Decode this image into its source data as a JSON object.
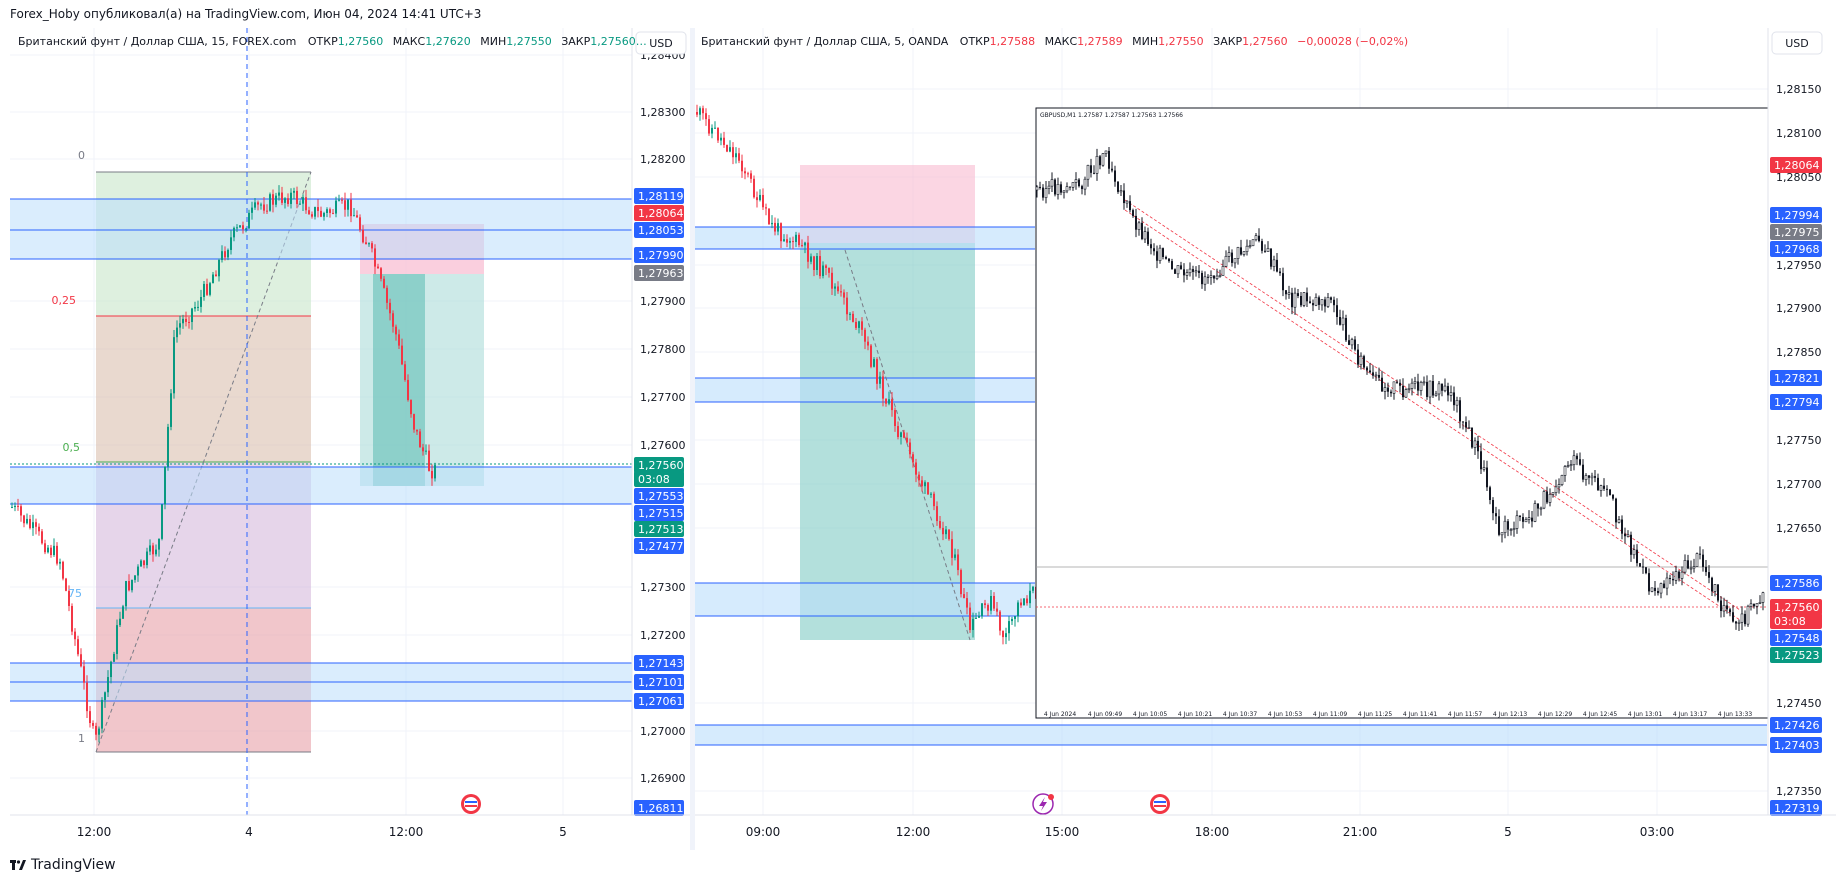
{
  "header": {
    "published_text": "Forex_Hoby опубликовал(а) на TradingView.com, Июн 04, 2024 14:41 UTC+3"
  },
  "footer": {
    "brand": "TradingView"
  },
  "colors": {
    "up": "#089981",
    "down": "#f23645",
    "zone": "#2962ff",
    "accent_blue": "#2962ff",
    "grid": "#f0f3fa"
  },
  "left_panel": {
    "legend": {
      "symbol": "Британский фунт / Доллар США, 15, FOREX.com",
      "o_label": "ОТКР",
      "o": "1,27560",
      "h_label": "МАКС",
      "h": "1,27620",
      "l_label": "МИН",
      "l": "1,27550",
      "c_label": "ЗАКР",
      "c": "1,27560…"
    },
    "currency_button": "USD",
    "price_ticks": [
      "1,28400",
      "1,28300",
      "1,28200",
      "1,27900",
      "1,27800",
      "1,27700",
      "1,27600",
      "1,27300",
      "1,27200",
      "1,27000",
      "1,26900"
    ],
    "price_badges": [
      {
        "text": "1,28119",
        "color": "#2962ff"
      },
      {
        "text": "1,28064",
        "color": "#f23645"
      },
      {
        "text": "1,28053",
        "color": "#2962ff"
      },
      {
        "text": "1,27990",
        "color": "#2962ff"
      },
      {
        "text": "1,27963",
        "color": "#787b86"
      },
      {
        "text": "1,27560",
        "color": "#089981"
      },
      {
        "text": "03:08",
        "color": "#089981"
      },
      {
        "text": "1,27553",
        "color": "#2962ff"
      },
      {
        "text": "1,27515",
        "color": "#2962ff"
      },
      {
        "text": "1,27513",
        "color": "#089981"
      },
      {
        "text": "1,27477",
        "color": "#2962ff"
      },
      {
        "text": "1,27143",
        "color": "#2962ff"
      },
      {
        "text": "1,27101",
        "color": "#2962ff"
      },
      {
        "text": "1,27061",
        "color": "#2962ff"
      },
      {
        "text": "1,26811",
        "color": "#2962ff"
      }
    ],
    "time_ticks": [
      "12:00",
      "4",
      "12:00",
      "5"
    ],
    "fib_labels": [
      "0",
      "0,25",
      "0,5",
      "75",
      "1"
    ]
  },
  "right_panel": {
    "legend": {
      "symbol": "Британский фунт / Доллар США, 5, OANDA",
      "o_label": "ОТКР",
      "o": "1,27588",
      "h_label": "МАКС",
      "h": "1,27589",
      "l_label": "МИН",
      "l": "1,27550",
      "c_label": "ЗАКР",
      "c": "1,27560",
      "change": "−0,00028 (−0,02%)"
    },
    "currency_button": "USD",
    "price_ticks": [
      "1,28150",
      "1,28100",
      "1,28050",
      "1,27950",
      "1,27900",
      "1,27850",
      "1,27750",
      "1,27700",
      "1,27650",
      "1,27450",
      "1,27350"
    ],
    "price_badges": [
      {
        "text": "1,28064",
        "color": "#f23645"
      },
      {
        "text": "1,27994",
        "color": "#2962ff"
      },
      {
        "text": "1,27975",
        "color": "#787b86"
      },
      {
        "text": "1,27968",
        "color": "#2962ff"
      },
      {
        "text": "1,27821",
        "color": "#2962ff"
      },
      {
        "text": "1,27794",
        "color": "#2962ff"
      },
      {
        "text": "1,27586",
        "color": "#2962ff"
      },
      {
        "text": "1,27560",
        "color": "#f23645"
      },
      {
        "text": "03:08",
        "color": "#f23645"
      },
      {
        "text": "1,27548",
        "color": "#2962ff"
      },
      {
        "text": "1,27523",
        "color": "#089981"
      },
      {
        "text": "1,27426",
        "color": "#2962ff"
      },
      {
        "text": "1,27403",
        "color": "#2962ff"
      },
      {
        "text": "1,27319",
        "color": "#2962ff"
      }
    ],
    "time_ticks": [
      "09:00",
      "12:00",
      "15:00",
      "18:00",
      "21:00",
      "5",
      "03:00"
    ],
    "inset": {
      "title": "GBPUSD,M1  1.27587 1.27587 1.27563 1.27566",
      "time_labels": [
        "4 Jun 2024",
        "4 Jun 09:49",
        "4 Jun 10:05",
        "4 Jun 10:21",
        "4 Jun 10:37",
        "4 Jun 10:53",
        "4 Jun 11:09",
        "4 Jun 11:25",
        "4 Jun 11:41",
        "4 Jun 11:57",
        "4 Jun 12:13",
        "4 Jun 12:29",
        "4 Jun 12:45",
        "4 Jun 13:01",
        "4 Jun 13:17",
        "4 Jun 13:33",
        "4 Jun"
      ]
    }
  }
}
